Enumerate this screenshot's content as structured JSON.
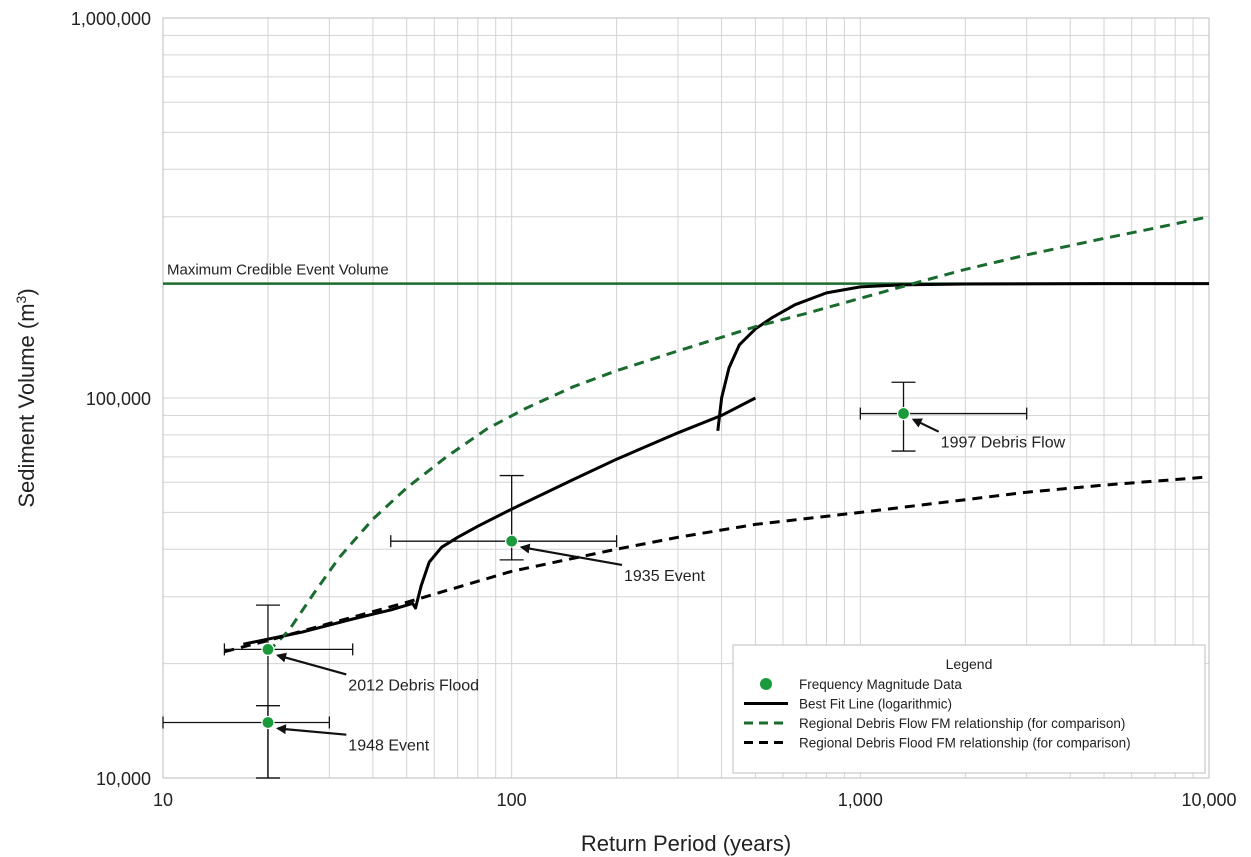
{
  "chart_data": {
    "type": "scatter",
    "xscale": "log",
    "yscale": "log",
    "xlim": [
      10,
      10000
    ],
    "ylim": [
      10000,
      1000000
    ],
    "grid": true,
    "xlabel": "Return Period (years)",
    "ylabel": "Sediment Volume (m",
    "ylabel_sup": "3",
    "ylabel_end": ")",
    "x_ticks": [
      {
        "value": 10,
        "label": "10"
      },
      {
        "value": 100,
        "label": "100"
      },
      {
        "value": 1000,
        "label": "1,000"
      },
      {
        "value": 10000,
        "label": "10,000"
      }
    ],
    "y_ticks": [
      {
        "value": 10000,
        "label": "10,000"
      },
      {
        "value": 100000,
        "label": "100,000"
      },
      {
        "value": 1000000,
        "label": "1,000,000"
      }
    ],
    "mce_line": {
      "label": "Maximum Credible Event Volume",
      "value": 200000,
      "color": "#1a6b2e"
    },
    "legend": {
      "title": "Legend",
      "position": "bottom-right",
      "items": [
        {
          "label": "Frequency Magnitude Data",
          "kind": "marker",
          "color": "#1a9a3a"
        },
        {
          "label": "Best Fit Line (logarithmic)",
          "kind": "solid",
          "color": "#000000"
        },
        {
          "label": "Regional Debris Flow FM relationship (for comparison)",
          "kind": "dashed",
          "color": "#1a6b2e"
        },
        {
          "label": "Regional Debris Flood FM relationship (for comparison)",
          "kind": "dashed",
          "color": "#000000"
        }
      ]
    },
    "points": [
      {
        "name": "1948 Event",
        "x": 20,
        "y": 14000,
        "xerr": [
          10,
          30
        ],
        "yerr": [
          10000,
          15500
        ],
        "label_x": 34,
        "label_y": 11800
      },
      {
        "name": "2012 Debris Flood",
        "x": 20,
        "y": 21800,
        "xerr": [
          15,
          35
        ],
        "yerr": [
          10000,
          28500
        ],
        "label_x": 34,
        "label_y": 17000
      },
      {
        "name": "1935 Event",
        "x": 100,
        "y": 42000,
        "xerr": [
          45,
          200
        ],
        "yerr": [
          37500,
          62500
        ],
        "label_x": 210,
        "label_y": 33000
      },
      {
        "name": "1997 Debris Flow",
        "x": 1330,
        "y": 91000,
        "xerr": [
          1000,
          3000
        ],
        "yerr": [
          72500,
          110000
        ],
        "label_x": 1700,
        "label_y": 74000
      }
    ],
    "series": [
      {
        "kind": "best-fit",
        "color": "#000000",
        "x": [
          17,
          25,
          35,
          45,
          52,
          53,
          55,
          58,
          63,
          70,
          80,
          100,
          150,
          200,
          300,
          400,
          500
        ],
        "y": [
          22500,
          24200,
          26200,
          27700,
          28800,
          28000,
          32000,
          37000,
          40500,
          43000,
          46000,
          51000,
          61000,
          69000,
          81000,
          90000,
          100000
        ]
      },
      {
        "kind": "best-fit",
        "color": "#000000",
        "x": [
          390,
          400,
          420,
          450,
          500,
          560,
          650,
          800,
          1000,
          1300,
          2000,
          5000,
          10000
        ],
        "y": [
          82000,
          100000,
          120000,
          138000,
          152000,
          163000,
          176000,
          189000,
          196000,
          198500,
          199500,
          200000,
          200000
        ]
      },
      {
        "kind": "regional-debris-flow",
        "color": "#1a6b2e",
        "x": [
          20,
          23,
          27,
          32,
          40,
          50,
          65,
          85,
          110,
          150,
          200,
          300,
          500,
          700,
          1000,
          1500,
          2000,
          3000,
          5000,
          7000,
          10000
        ],
        "y": [
          21500,
          24500,
          30500,
          38000,
          48000,
          58000,
          70000,
          83000,
          94000,
          107000,
          118000,
          133000,
          154000,
          167000,
          183000,
          203000,
          218000,
          238000,
          263000,
          280000,
          300000
        ]
      },
      {
        "kind": "regional-debris-flood",
        "color": "#000000",
        "x": [
          15,
          20,
          30,
          50,
          100,
          200,
          300,
          500,
          1000,
          2000,
          3000,
          5000,
          10000
        ],
        "y": [
          21500,
          23000,
          25500,
          29000,
          35000,
          40000,
          43000,
          46500,
          50000,
          54000,
          56500,
          59000,
          62000
        ]
      }
    ]
  }
}
